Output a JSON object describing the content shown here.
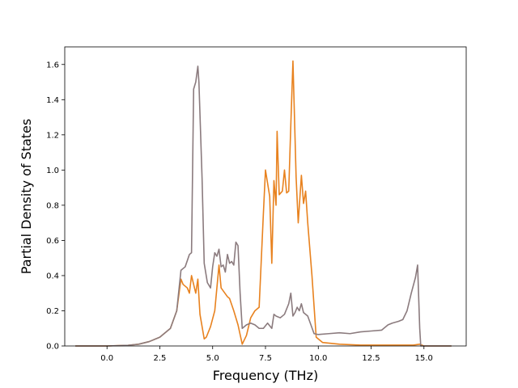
{
  "chart_data": {
    "type": "line",
    "title": "",
    "xlabel": "Frequency (THz)",
    "ylabel": "Partial Density of States",
    "xlim": [
      -2.0,
      17.0
    ],
    "ylim": [
      0.0,
      1.7
    ],
    "xticks": [
      0.0,
      2.5,
      5.0,
      7.5,
      10.0,
      12.5,
      15.0
    ],
    "xtick_labels": [
      "0.0",
      "2.5",
      "5.0",
      "7.5",
      "10.0",
      "12.5",
      "15.0"
    ],
    "yticks": [
      0.0,
      0.2,
      0.4,
      0.6,
      0.8,
      1.0,
      1.2,
      1.4,
      1.6
    ],
    "ytick_labels": [
      "0.0",
      "0.2",
      "0.4",
      "0.6",
      "0.8",
      "1.0",
      "1.2",
      "1.4",
      "1.6"
    ],
    "grid": false,
    "series": [
      {
        "color": "#e8821f",
        "points": [
          [
            -1.5,
            0.0
          ],
          [
            0.0,
            0.0
          ],
          [
            1.0,
            0.004
          ],
          [
            1.5,
            0.01
          ],
          [
            2.0,
            0.025
          ],
          [
            2.5,
            0.05
          ],
          [
            3.0,
            0.1
          ],
          [
            3.3,
            0.2
          ],
          [
            3.5,
            0.38
          ],
          [
            3.6,
            0.35
          ],
          [
            3.8,
            0.33
          ],
          [
            3.9,
            0.3
          ],
          [
            4.0,
            0.4
          ],
          [
            4.2,
            0.3
          ],
          [
            4.3,
            0.38
          ],
          [
            4.4,
            0.18
          ],
          [
            4.6,
            0.04
          ],
          [
            4.7,
            0.05
          ],
          [
            4.9,
            0.11
          ],
          [
            5.1,
            0.2
          ],
          [
            5.3,
            0.46
          ],
          [
            5.4,
            0.33
          ],
          [
            5.7,
            0.28
          ],
          [
            5.8,
            0.27
          ],
          [
            6.0,
            0.2
          ],
          [
            6.2,
            0.12
          ],
          [
            6.4,
            0.01
          ],
          [
            6.6,
            0.06
          ],
          [
            6.8,
            0.16
          ],
          [
            7.0,
            0.2
          ],
          [
            7.2,
            0.22
          ],
          [
            7.4,
            0.75
          ],
          [
            7.5,
            1.0
          ],
          [
            7.7,
            0.85
          ],
          [
            7.8,
            0.47
          ],
          [
            7.9,
            0.94
          ],
          [
            8.0,
            0.8
          ],
          [
            8.05,
            1.22
          ],
          [
            8.15,
            0.86
          ],
          [
            8.3,
            0.88
          ],
          [
            8.4,
            1.0
          ],
          [
            8.5,
            0.87
          ],
          [
            8.6,
            0.88
          ],
          [
            8.7,
            1.26
          ],
          [
            8.8,
            1.62
          ],
          [
            8.95,
            0.96
          ],
          [
            9.05,
            0.7
          ],
          [
            9.2,
            0.97
          ],
          [
            9.3,
            0.81
          ],
          [
            9.4,
            0.88
          ],
          [
            9.5,
            0.7
          ],
          [
            9.7,
            0.4
          ],
          [
            9.9,
            0.05
          ],
          [
            10.2,
            0.02
          ],
          [
            11.0,
            0.01
          ],
          [
            12.0,
            0.005
          ],
          [
            14.5,
            0.005
          ],
          [
            14.8,
            0.01
          ],
          [
            15.0,
            0.0
          ],
          [
            16.3,
            0.0
          ]
        ]
      },
      {
        "color": "#8b7b7e",
        "points": [
          [
            -1.5,
            0.0
          ],
          [
            0.0,
            0.0
          ],
          [
            1.0,
            0.004
          ],
          [
            1.5,
            0.01
          ],
          [
            2.0,
            0.025
          ],
          [
            2.5,
            0.05
          ],
          [
            3.0,
            0.1
          ],
          [
            3.3,
            0.2
          ],
          [
            3.5,
            0.43
          ],
          [
            3.7,
            0.45
          ],
          [
            3.9,
            0.52
          ],
          [
            4.0,
            0.53
          ],
          [
            4.1,
            1.46
          ],
          [
            4.2,
            1.5
          ],
          [
            4.3,
            1.59
          ],
          [
            4.35,
            1.5
          ],
          [
            4.5,
            0.95
          ],
          [
            4.6,
            0.47
          ],
          [
            4.75,
            0.36
          ],
          [
            4.9,
            0.33
          ],
          [
            5.0,
            0.45
          ],
          [
            5.1,
            0.53
          ],
          [
            5.2,
            0.51
          ],
          [
            5.3,
            0.55
          ],
          [
            5.4,
            0.45
          ],
          [
            5.5,
            0.46
          ],
          [
            5.6,
            0.42
          ],
          [
            5.7,
            0.52
          ],
          [
            5.8,
            0.47
          ],
          [
            5.9,
            0.48
          ],
          [
            6.0,
            0.46
          ],
          [
            6.1,
            0.59
          ],
          [
            6.2,
            0.57
          ],
          [
            6.3,
            0.3
          ],
          [
            6.4,
            0.1
          ],
          [
            6.6,
            0.12
          ],
          [
            6.8,
            0.13
          ],
          [
            7.0,
            0.12
          ],
          [
            7.2,
            0.1
          ],
          [
            7.4,
            0.1
          ],
          [
            7.6,
            0.13
          ],
          [
            7.8,
            0.1
          ],
          [
            7.9,
            0.18
          ],
          [
            8.0,
            0.17
          ],
          [
            8.2,
            0.16
          ],
          [
            8.4,
            0.18
          ],
          [
            8.6,
            0.24
          ],
          [
            8.7,
            0.3
          ],
          [
            8.8,
            0.17
          ],
          [
            8.9,
            0.19
          ],
          [
            9.0,
            0.22
          ],
          [
            9.1,
            0.2
          ],
          [
            9.2,
            0.24
          ],
          [
            9.3,
            0.19
          ],
          [
            9.5,
            0.17
          ],
          [
            9.8,
            0.07
          ],
          [
            10.0,
            0.065
          ],
          [
            10.5,
            0.07
          ],
          [
            11.0,
            0.075
          ],
          [
            11.5,
            0.07
          ],
          [
            12.0,
            0.08
          ],
          [
            12.5,
            0.085
          ],
          [
            13.0,
            0.09
          ],
          [
            13.3,
            0.12
          ],
          [
            13.5,
            0.13
          ],
          [
            13.8,
            0.14
          ],
          [
            14.0,
            0.15
          ],
          [
            14.2,
            0.2
          ],
          [
            14.4,
            0.3
          ],
          [
            14.6,
            0.39
          ],
          [
            14.7,
            0.46
          ],
          [
            14.8,
            0.1
          ],
          [
            14.85,
            0.0
          ],
          [
            16.3,
            0.0
          ]
        ]
      }
    ]
  }
}
